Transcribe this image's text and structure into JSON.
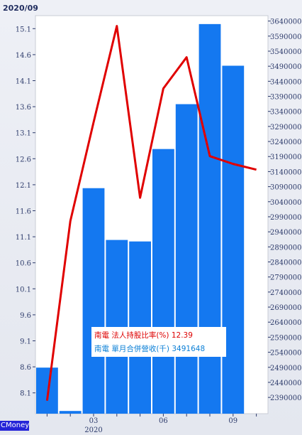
{
  "chart_data": {
    "type": "bar+line",
    "title": "2020/09",
    "months": [
      "",
      "",
      "03",
      "",
      "",
      "06",
      "",
      "",
      "09",
      ""
    ],
    "year_label": "2020",
    "left_axis": {
      "ticks": [
        8.1,
        8.6,
        9.1,
        9.6,
        10.1,
        10.6,
        11.1,
        11.6,
        12.1,
        12.6,
        13.1,
        13.6,
        14.1,
        14.6,
        15.1
      ],
      "range": [
        7.7,
        15.35
      ]
    },
    "right_axis": {
      "ticks": [
        2390000,
        2440000,
        2490000,
        2540000,
        2590000,
        2640000,
        2690000,
        2740000,
        2790000,
        2840000,
        2890000,
        2940000,
        2990000,
        3040000,
        3090000,
        3140000,
        3190000,
        3240000,
        3290000,
        3340000,
        3390000,
        3440000,
        3490000,
        3540000,
        3590000,
        3640000
      ],
      "range": [
        2336000,
        3658000
      ]
    },
    "series": [
      {
        "name": "單月合併營收(千)",
        "type": "bar",
        "color": "#1478f0",
        "values": [
          2489000,
          2345000,
          3085000,
          2913000,
          2908000,
          3215000,
          3364000,
          3630000,
          3491648,
          null
        ]
      },
      {
        "name": "法人持股比率(%)",
        "type": "line",
        "color": "#e00000",
        "values": [
          7.95,
          11.4,
          13.3,
          15.15,
          11.85,
          13.95,
          14.55,
          12.65,
          12.5,
          12.39
        ]
      }
    ],
    "legend": [
      {
        "company": "南電",
        "label": "法人持股比率(%)",
        "value": "12.39",
        "color": "#dd0000"
      },
      {
        "company": "南電",
        "label": "單月合併營收(千)",
        "value": "3491648",
        "color": "#0a7fd6"
      }
    ]
  },
  "brand": "CMoney"
}
